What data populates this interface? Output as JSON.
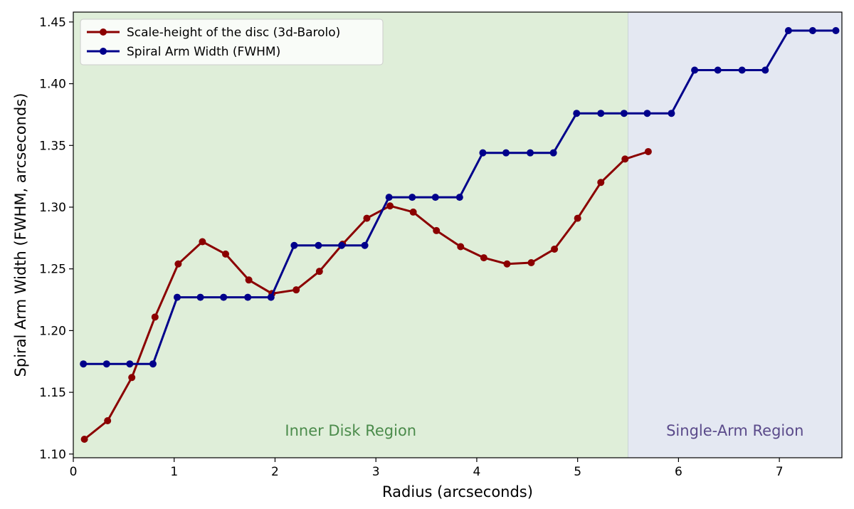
{
  "chart_data": {
    "type": "line",
    "xlabel": "Radius (arcseconds)",
    "ylabel": "Spiral Arm Width (FWHM, arcseconds)",
    "xlim": [
      0,
      7.62
    ],
    "ylim": [
      1.097,
      1.458
    ],
    "x_ticks": [
      0,
      1,
      2,
      3,
      4,
      5,
      6,
      7
    ],
    "y_ticks": [
      1.1,
      1.15,
      1.2,
      1.25,
      1.3,
      1.35,
      1.4,
      1.45
    ],
    "grid": false,
    "legend_position": "top-left",
    "regions": [
      {
        "label": "Inner Disk Region",
        "x_range": [
          0,
          5.5
        ],
        "color": "#dfeed9",
        "label_color": "#4b8b4b"
      },
      {
        "label": "Single-Arm Region",
        "x_range": [
          5.5,
          7.62
        ],
        "color": "#e4e8f2",
        "label_color": "#5a4a8a"
      }
    ],
    "series": [
      {
        "name": "Scale-height of the disc (3d-Barolo)",
        "color": "#8b0000",
        "x": [
          0.11,
          0.34,
          0.58,
          0.81,
          1.04,
          1.28,
          1.51,
          1.74,
          1.97,
          2.21,
          2.44,
          2.67,
          2.91,
          3.14,
          3.37,
          3.6,
          3.84,
          4.07,
          4.3,
          4.54,
          4.77,
          5.0,
          5.23,
          5.47,
          5.7
        ],
        "y": [
          1.112,
          1.127,
          1.162,
          1.211,
          1.254,
          1.272,
          1.262,
          1.241,
          1.23,
          1.233,
          1.248,
          1.27,
          1.291,
          1.301,
          1.296,
          1.281,
          1.268,
          1.259,
          1.254,
          1.255,
          1.266,
          1.291,
          1.32,
          1.339,
          1.345
        ]
      },
      {
        "name": "Spiral Arm Width (FWHM)",
        "color": "#00008b",
        "x": [
          0.1,
          0.33,
          0.56,
          0.79,
          1.03,
          1.26,
          1.49,
          1.73,
          1.96,
          2.19,
          2.43,
          2.66,
          2.89,
          3.13,
          3.36,
          3.59,
          3.83,
          4.06,
          4.29,
          4.53,
          4.76,
          4.99,
          5.23,
          5.46,
          5.69,
          5.93,
          6.16,
          6.39,
          6.63,
          6.86,
          7.09,
          7.33,
          7.56
        ],
        "y": [
          1.173,
          1.173,
          1.173,
          1.173,
          1.227,
          1.227,
          1.227,
          1.227,
          1.227,
          1.269,
          1.269,
          1.269,
          1.269,
          1.308,
          1.308,
          1.308,
          1.308,
          1.344,
          1.344,
          1.344,
          1.344,
          1.376,
          1.376,
          1.376,
          1.376,
          1.376,
          1.411,
          1.411,
          1.411,
          1.411,
          1.443,
          1.443,
          1.443
        ]
      }
    ]
  }
}
